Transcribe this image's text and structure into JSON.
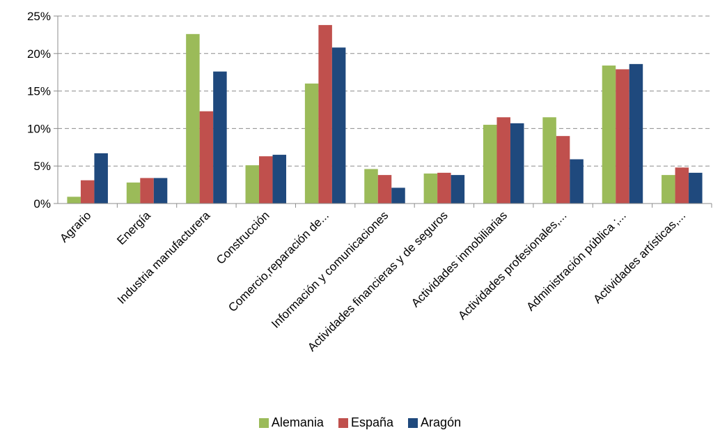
{
  "chart_data": {
    "type": "bar",
    "categories": [
      "Agrario",
      "Energía",
      "Industria manufacturera",
      "Construcción",
      "Comercio,reparación de...",
      "Información y comunicaciones",
      "Actividades financieras y de seguros",
      "Actividades inmobiliarias",
      "Actividades profesionales,...",
      "Administración pública ;...",
      "Actividades artísticas,..."
    ],
    "series": [
      {
        "name": "Alemania",
        "color": "#9BBB59",
        "values": [
          0.9,
          2.8,
          22.6,
          5.1,
          16.0,
          4.6,
          4.0,
          10.5,
          11.5,
          18.4,
          3.8
        ]
      },
      {
        "name": "España",
        "color": "#C0504D",
        "values": [
          3.1,
          3.4,
          12.3,
          6.3,
          23.8,
          3.8,
          4.1,
          11.5,
          9.0,
          17.9,
          4.8
        ]
      },
      {
        "name": "Aragón",
        "color": "#1F497D",
        "values": [
          6.7,
          3.4,
          17.6,
          6.5,
          20.8,
          2.1,
          3.8,
          10.7,
          5.9,
          18.6,
          4.1
        ]
      }
    ],
    "yticks": [
      "0%",
      "5%",
      "10%",
      "15%",
      "20%",
      "25%"
    ],
    "ylim": [
      0,
      25
    ],
    "grid": true,
    "legend": "bottom"
  }
}
